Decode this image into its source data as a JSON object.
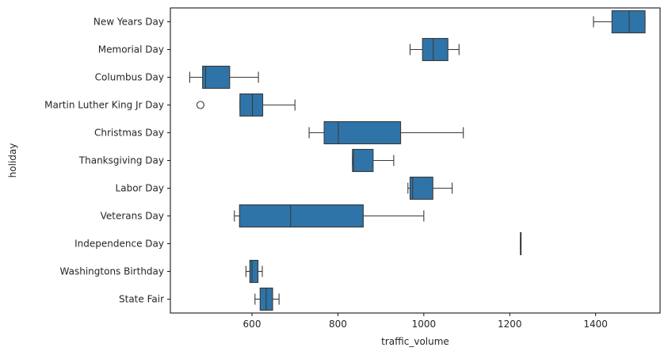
{
  "chart_data": {
    "type": "box",
    "orientation": "horizontal",
    "xlabel": "traffic_volume",
    "ylabel": "holiday",
    "xlim": [
      410,
      1550
    ],
    "xticks": [
      600,
      800,
      1000,
      1200,
      1400
    ],
    "grid": false,
    "legend": "none",
    "box_color": "#2f74a8",
    "line_color": "#3a3a3a",
    "categories": [
      "New Years Day",
      "Memorial Day",
      "Columbus Day",
      "Martin Luther King Jr Day",
      "Christmas Day",
      "Thanksgiving Day",
      "Labor Day",
      "Veterans Day",
      "Independence Day",
      "Washingtons Birthday",
      "State Fair"
    ],
    "boxes": [
      {
        "min": 1395,
        "q1": 1438,
        "median": 1478,
        "q3": 1515,
        "max": 1515,
        "outliers": []
      },
      {
        "min": 968,
        "q1": 997,
        "median": 1022,
        "q3": 1056,
        "max": 1082,
        "outliers": []
      },
      {
        "min": 455,
        "q1": 485,
        "median": 492,
        "q3": 548,
        "max": 615,
        "outliers": []
      },
      {
        "min": 572,
        "q1": 572,
        "median": 601,
        "q3": 625,
        "max": 700,
        "outliers": [
          480
        ]
      },
      {
        "min": 733,
        "q1": 768,
        "median": 801,
        "q3": 946,
        "max": 1092,
        "outliers": []
      },
      {
        "min": 834,
        "q1": 834,
        "median": 836,
        "q3": 882,
        "max": 930,
        "outliers": []
      },
      {
        "min": 963,
        "q1": 968,
        "median": 974,
        "q3": 1021,
        "max": 1066,
        "outliers": []
      },
      {
        "min": 559,
        "q1": 571,
        "median": 690,
        "q3": 859,
        "max": 1000,
        "outliers": []
      },
      {
        "min": 1225,
        "q1": 1225,
        "median": 1225,
        "q3": 1225,
        "max": 1225,
        "outliers": []
      },
      {
        "min": 586,
        "q1": 595,
        "median": 600,
        "q3": 614,
        "max": 624,
        "outliers": []
      },
      {
        "min": 607,
        "q1": 619,
        "median": 633,
        "q3": 648,
        "max": 663,
        "outliers": []
      }
    ]
  }
}
